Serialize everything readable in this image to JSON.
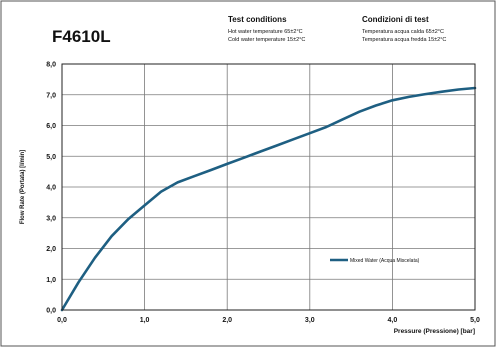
{
  "header": {
    "model": "F4610L",
    "test_title_en": "Test conditions",
    "hot_en": "Hot water temperature   65±2°C",
    "cold_en": "Cold water temperature  15±2°C",
    "test_title_it": "Condizioni di test",
    "hot_it": "Temperatura acqua calda   65±2°C",
    "cold_it": "Temperatura acqua fredda  15±2°C"
  },
  "chart_data": {
    "type": "line",
    "xlabel": "Pressure (Pressione) [bar]",
    "ylabel": "Flow Rate (Portata) [l/min]",
    "xlim": [
      0,
      5
    ],
    "ylim": [
      0,
      8
    ],
    "grid": true,
    "legend_position": "right",
    "x_ticks": [
      "0,0",
      "1,0",
      "2,0",
      "3,0",
      "4,0",
      "5,0"
    ],
    "y_ticks": [
      "0,0",
      "1,0",
      "2,0",
      "3,0",
      "4,0",
      "5,0",
      "6,0",
      "7,0",
      "8,0"
    ],
    "series": [
      {
        "name": "Mixed Water (Acqua Miscelata)",
        "color": "#1e5f82",
        "x": [
          0,
          0.2,
          0.4,
          0.6,
          0.8,
          1.0,
          1.2,
          1.4,
          1.6,
          1.8,
          2.0,
          2.2,
          2.4,
          2.6,
          2.8,
          3.0,
          3.2,
          3.4,
          3.6,
          3.8,
          4.0,
          4.2,
          4.4,
          4.6,
          4.8,
          5.0
        ],
        "y": [
          0,
          0.9,
          1.7,
          2.4,
          2.95,
          3.4,
          3.85,
          4.15,
          4.35,
          4.55,
          4.75,
          4.95,
          5.15,
          5.35,
          5.55,
          5.75,
          5.95,
          6.2,
          6.45,
          6.65,
          6.82,
          6.93,
          7.02,
          7.1,
          7.17,
          7.22
        ]
      }
    ]
  }
}
